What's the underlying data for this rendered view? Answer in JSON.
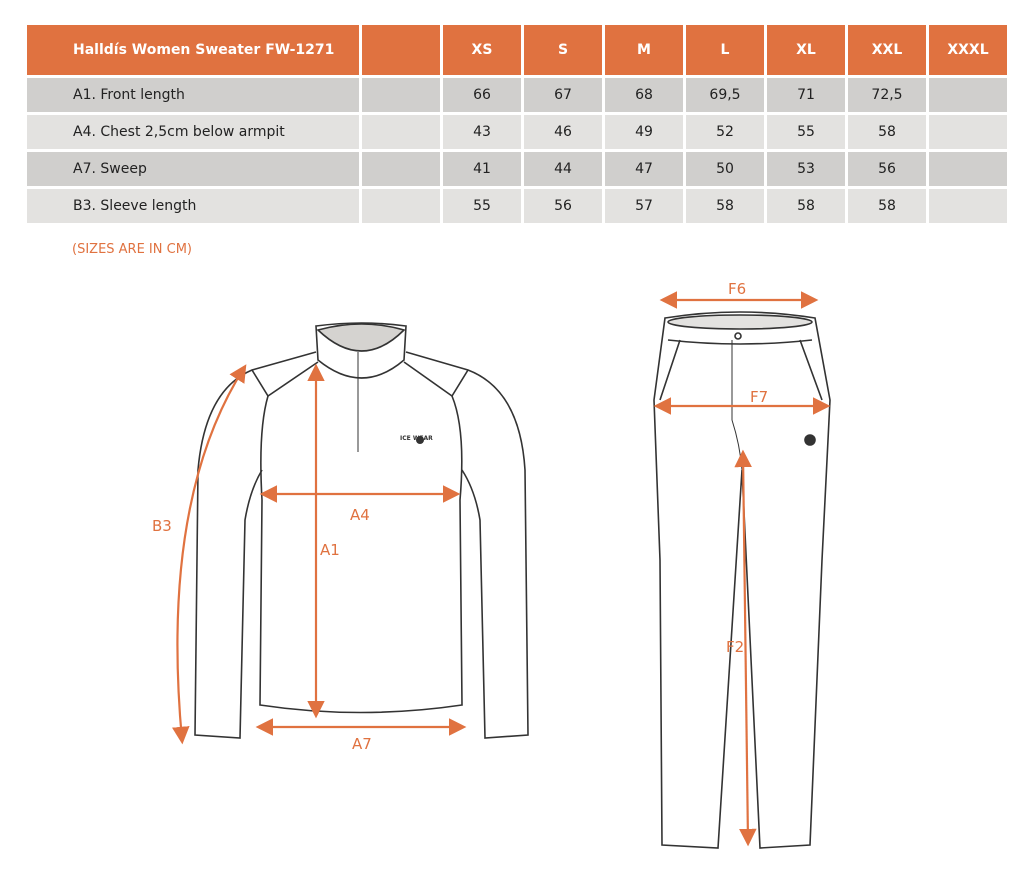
{
  "table": {
    "title": "Halldís Women Sweater FW-1271",
    "sizes": [
      "XS",
      "S",
      "M",
      "L",
      "XL",
      "XXL",
      "XXXL"
    ],
    "rows": [
      {
        "label": "A1. Front length",
        "values": [
          "66",
          "67",
          "68",
          "69,5",
          "71",
          "72,5",
          ""
        ]
      },
      {
        "label": "A4. Chest 2,5cm below armpit",
        "values": [
          "43",
          "46",
          "49",
          "52",
          "55",
          "58",
          ""
        ]
      },
      {
        "label": "A7. Sweep",
        "values": [
          "41",
          "44",
          "47",
          "50",
          "53",
          "56",
          ""
        ]
      },
      {
        "label": "B3. Sleeve length",
        "values": [
          "55",
          "56",
          "57",
          "58",
          "58",
          "58",
          ""
        ]
      }
    ]
  },
  "note": "(SIZES ARE IN CM)",
  "diagram": {
    "accent_color": "#e07240",
    "sweater_labels": {
      "b3": "B3",
      "a4": "A4",
      "a1": "A1",
      "a7": "A7"
    },
    "pants_labels": {
      "f6": "F6",
      "f7": "F7",
      "f2": "F2"
    },
    "logo": "ICE WEAR"
  }
}
